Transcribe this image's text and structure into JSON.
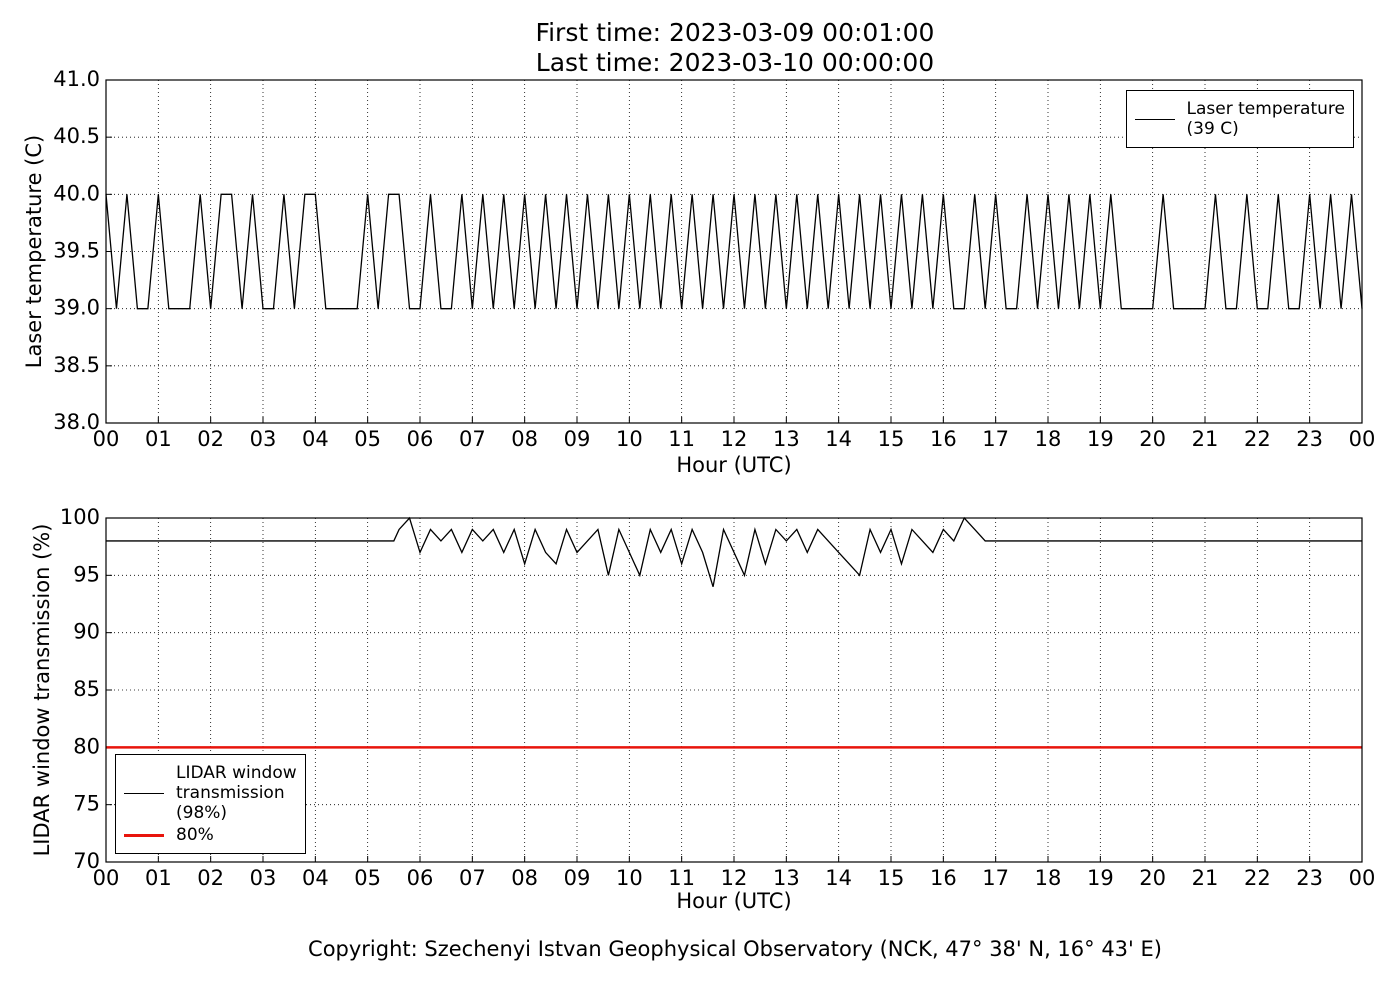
{
  "chart_data": [
    {
      "type": "line",
      "title": "First time: 2023-03-09 00:01:00",
      "subtitle": "Last time: 2023-03-10 00:00:00",
      "xlabel": "Hour (UTC)",
      "ylabel": "Laser temperature (C)",
      "xlim": [
        0,
        24
      ],
      "ylim": [
        38,
        41
      ],
      "grid": true,
      "legend": "upper right",
      "xticks": [
        {
          "value": 0,
          "label": "00"
        },
        {
          "value": 1,
          "label": "01"
        },
        {
          "value": 2,
          "label": "02"
        },
        {
          "value": 3,
          "label": "03"
        },
        {
          "value": 4,
          "label": "04"
        },
        {
          "value": 5,
          "label": "05"
        },
        {
          "value": 6,
          "label": "06"
        },
        {
          "value": 7,
          "label": "07"
        },
        {
          "value": 8,
          "label": "08"
        },
        {
          "value": 9,
          "label": "09"
        },
        {
          "value": 10,
          "label": "10"
        },
        {
          "value": 11,
          "label": "11"
        },
        {
          "value": 12,
          "label": "12"
        },
        {
          "value": 13,
          "label": "13"
        },
        {
          "value": 14,
          "label": "14"
        },
        {
          "value": 15,
          "label": "15"
        },
        {
          "value": 16,
          "label": "16"
        },
        {
          "value": 17,
          "label": "17"
        },
        {
          "value": 18,
          "label": "18"
        },
        {
          "value": 19,
          "label": "19"
        },
        {
          "value": 20,
          "label": "20"
        },
        {
          "value": 21,
          "label": "21"
        },
        {
          "value": 22,
          "label": "22"
        },
        {
          "value": 23,
          "label": "23"
        },
        {
          "value": 24,
          "label": "00"
        }
      ],
      "yticks": [
        {
          "value": 38,
          "label": "38.0"
        },
        {
          "value": 38.5,
          "label": "38.5"
        },
        {
          "value": 39,
          "label": "39.0"
        },
        {
          "value": 39.5,
          "label": "39.5"
        },
        {
          "value": 40,
          "label": "40.0"
        },
        {
          "value": 40.5,
          "label": "40.5"
        },
        {
          "value": 41,
          "label": "41.0"
        }
      ],
      "series": [
        {
          "name": "Laser temperature\n(39 C)",
          "color": "#000000",
          "x": [
            0,
            0.2,
            0.4,
            0.6,
            0.8,
            1,
            1.2,
            1.4,
            1.6,
            1.8,
            2,
            2.2,
            2.4,
            2.6,
            2.8,
            3,
            3.2,
            3.4,
            3.6,
            3.8,
            4,
            4.2,
            4.4,
            4.6,
            4.8,
            5,
            5.2,
            5.4,
            5.6,
            5.8,
            6,
            6.2,
            6.4,
            6.6,
            6.8,
            7,
            7.2,
            7.4,
            7.6,
            7.8,
            8,
            8.2,
            8.4,
            8.6,
            8.8,
            9,
            9.2,
            9.4,
            9.6,
            9.8,
            10,
            10.2,
            10.4,
            10.6,
            10.8,
            11,
            11.2,
            11.4,
            11.6,
            11.8,
            12,
            12.2,
            12.4,
            12.6,
            12.8,
            13,
            13.2,
            13.4,
            13.6,
            13.8,
            14,
            14.2,
            14.4,
            14.6,
            14.8,
            15,
            15.2,
            15.4,
            15.6,
            15.8,
            16,
            16.2,
            16.4,
            16.6,
            16.8,
            17,
            17.2,
            17.4,
            17.6,
            17.8,
            18,
            18.2,
            18.4,
            18.6,
            18.8,
            19,
            19.2,
            19.4,
            19.6,
            19.8,
            20,
            20.2,
            20.4,
            20.6,
            20.8,
            21,
            21.2,
            21.4,
            21.6,
            21.8,
            22,
            22.2,
            22.4,
            22.6,
            22.8,
            23,
            23.2,
            23.4,
            23.6,
            23.8,
            24
          ],
          "values": [
            40,
            39,
            40,
            39,
            39,
            40,
            39,
            39,
            39,
            40,
            39,
            40,
            40,
            39,
            40,
            39,
            39,
            40,
            39,
            40,
            40,
            39,
            39,
            39,
            39,
            40,
            39,
            40,
            40,
            39,
            39,
            40,
            39,
            39,
            40,
            39,
            40,
            39,
            40,
            39,
            40,
            39,
            40,
            39,
            40,
            39,
            40,
            39,
            40,
            39,
            40,
            39,
            40,
            39,
            40,
            39,
            40,
            39,
            40,
            39,
            40,
            39,
            40,
            39,
            40,
            39,
            40,
            39,
            40,
            39,
            40,
            39,
            40,
            39,
            40,
            39,
            40,
            39,
            40,
            39,
            40,
            39,
            39,
            40,
            39,
            40,
            39,
            39,
            40,
            39,
            40,
            39,
            40,
            39,
            40,
            39,
            40,
            39,
            39,
            39,
            39,
            40,
            39,
            39,
            39,
            39,
            40,
            39,
            39,
            40,
            39,
            39,
            40,
            39,
            39,
            40,
            39,
            40,
            39,
            40,
            39
          ]
        }
      ]
    },
    {
      "type": "line",
      "xlabel": "Hour (UTC)",
      "ylabel": "LIDAR window transmission (%)",
      "xlim": [
        0,
        24
      ],
      "ylim": [
        70,
        100
      ],
      "grid": true,
      "legend": "lower left",
      "xticks": [
        {
          "value": 0,
          "label": "00"
        },
        {
          "value": 1,
          "label": "01"
        },
        {
          "value": 2,
          "label": "02"
        },
        {
          "value": 3,
          "label": "03"
        },
        {
          "value": 4,
          "label": "04"
        },
        {
          "value": 5,
          "label": "05"
        },
        {
          "value": 6,
          "label": "06"
        },
        {
          "value": 7,
          "label": "07"
        },
        {
          "value": 8,
          "label": "08"
        },
        {
          "value": 9,
          "label": "09"
        },
        {
          "value": 10,
          "label": "10"
        },
        {
          "value": 11,
          "label": "11"
        },
        {
          "value": 12,
          "label": "12"
        },
        {
          "value": 13,
          "label": "13"
        },
        {
          "value": 14,
          "label": "14"
        },
        {
          "value": 15,
          "label": "15"
        },
        {
          "value": 16,
          "label": "16"
        },
        {
          "value": 17,
          "label": "17"
        },
        {
          "value": 18,
          "label": "18"
        },
        {
          "value": 19,
          "label": "19"
        },
        {
          "value": 20,
          "label": "20"
        },
        {
          "value": 21,
          "label": "21"
        },
        {
          "value": 22,
          "label": "22"
        },
        {
          "value": 23,
          "label": "23"
        },
        {
          "value": 24,
          "label": "00"
        }
      ],
      "yticks": [
        70,
        75,
        80,
        85,
        90,
        95,
        100
      ],
      "series": [
        {
          "name": "LIDAR window\ntransmission\n(98%)",
          "color": "#000000",
          "x": [
            0,
            5.5,
            5.6,
            5.8,
            6,
            6.2,
            6.4,
            6.6,
            6.8,
            7,
            7.2,
            7.4,
            7.6,
            7.8,
            8,
            8.2,
            8.4,
            8.6,
            8.8,
            9,
            9.2,
            9.4,
            9.6,
            9.8,
            10,
            10.2,
            10.4,
            10.6,
            10.8,
            11,
            11.2,
            11.4,
            11.6,
            11.8,
            12,
            12.2,
            12.4,
            12.6,
            12.8,
            13,
            13.2,
            13.4,
            13.6,
            13.8,
            14,
            14.2,
            14.4,
            14.6,
            14.8,
            15,
            15.2,
            15.4,
            15.6,
            15.8,
            16,
            16.2,
            16.4,
            16.6,
            16.8,
            17,
            24
          ],
          "values": [
            98,
            98,
            99,
            100,
            97,
            99,
            98,
            99,
            97,
            99,
            98,
            99,
            97,
            99,
            96,
            99,
            97,
            96,
            99,
            97,
            98,
            99,
            95,
            99,
            97,
            95,
            99,
            97,
            99,
            96,
            99,
            97,
            94,
            99,
            97,
            95,
            99,
            96,
            99,
            98,
            99,
            97,
            99,
            98,
            97,
            96,
            95,
            99,
            97,
            99,
            96,
            99,
            98,
            97,
            99,
            98,
            100,
            99,
            98,
            98,
            98
          ]
        },
        {
          "name": "80%",
          "color": "#e8140c",
          "x": [
            0,
            24
          ],
          "values": [
            80,
            80
          ]
        }
      ]
    }
  ],
  "footer": "Copyright: Szechenyi Istvan Geophysical Observatory (NCK, 47° 38' N, 16° 43' E)"
}
